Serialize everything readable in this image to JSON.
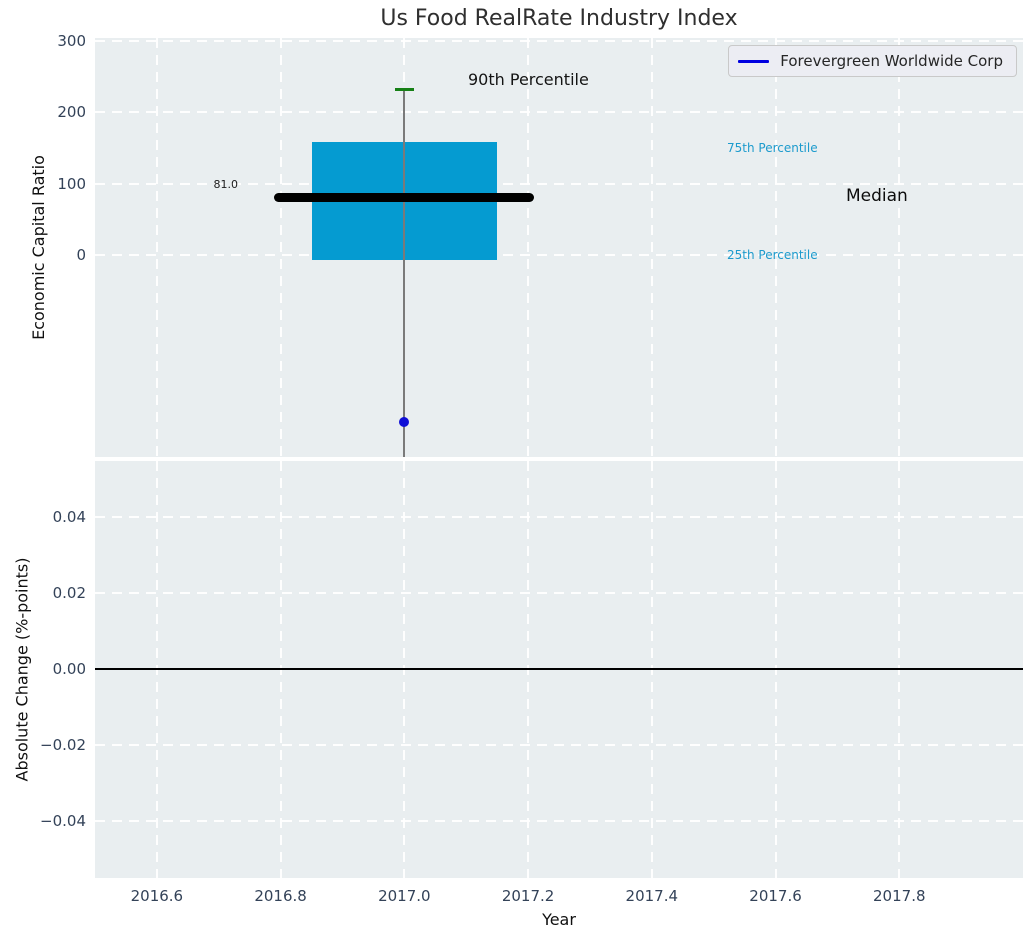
{
  "title": "Us Food RealRate Industry Index",
  "legend": {
    "series_label": "Forevergreen Worldwide Corp"
  },
  "ax1": {
    "ylabel": "Economic Capital Ratio",
    "ytick_labels": [
      "0",
      "100",
      "200",
      "300"
    ]
  },
  "ax2": {
    "ylabel": "Absolute Change (%-points)",
    "xlabel": "Year",
    "ytick_labels": [
      "0.04",
      "0.02",
      "0.00",
      "−0.02",
      "−0.04"
    ],
    "xtick_labels": [
      "2016.6",
      "2016.8",
      "2017.0",
      "2017.2",
      "2017.4",
      "2017.6",
      "2017.8"
    ]
  },
  "annotations": {
    "p90": "90th Percentile",
    "p75": "75th Percentile",
    "median": "Median",
    "p25": "25th Percentile",
    "median_value": "81.0"
  },
  "colors": {
    "box_fill": "#059bd1",
    "median_line": "#000000",
    "whisker": "#7a7a7a",
    "cap": "#168016",
    "point": "#0f0fd6",
    "legend_line": "#0000e0",
    "percentile_text": "#1d9bcd",
    "axes_bg": "#e9eef0",
    "tick_text": "#334258",
    "zero_line": "#000000"
  },
  "chart_data": [
    {
      "type": "boxplot",
      "title": "Us Food RealRate Industry Index",
      "ylabel": "Economic Capital Ratio",
      "xlabel": "Year",
      "xlim": [
        2016.5,
        2018.0
      ],
      "ylim": [
        -282,
        304
      ],
      "xticks": [
        2016.6,
        2016.8,
        2017.0,
        2017.2,
        2017.4,
        2017.6,
        2017.8
      ],
      "yticks": [
        0,
        100,
        200,
        300
      ],
      "grid": true,
      "legend_position": "upper right",
      "box": {
        "x_center": 2017.0,
        "q1": -7,
        "median": 81.0,
        "q3": 158,
        "p90": 233,
        "whisker_lower_note": "lower whisker extends below visible axis (clipped, < -282)",
        "box_x_range": [
          2016.85,
          2017.15
        ],
        "median_x_range": [
          2016.79,
          2017.21
        ],
        "cap_x_range": [
          2016.985,
          2017.015
        ]
      },
      "points": [
        {
          "name": "Forevergreen Worldwide Corp",
          "x": 2017.0,
          "y": -233
        }
      ]
    },
    {
      "type": "line",
      "ylabel": "Absolute Change (%-points)",
      "xlabel": "Year",
      "xlim": [
        2016.5,
        2018.0
      ],
      "ylim": [
        -0.0551,
        0.0549
      ],
      "xticks": [
        2016.6,
        2016.8,
        2017.0,
        2017.2,
        2017.4,
        2017.6,
        2017.8
      ],
      "yticks": [
        0.04,
        0.02,
        0,
        -0.02,
        -0.04
      ],
      "grid": true,
      "zero_line_y": 0,
      "series": []
    }
  ]
}
